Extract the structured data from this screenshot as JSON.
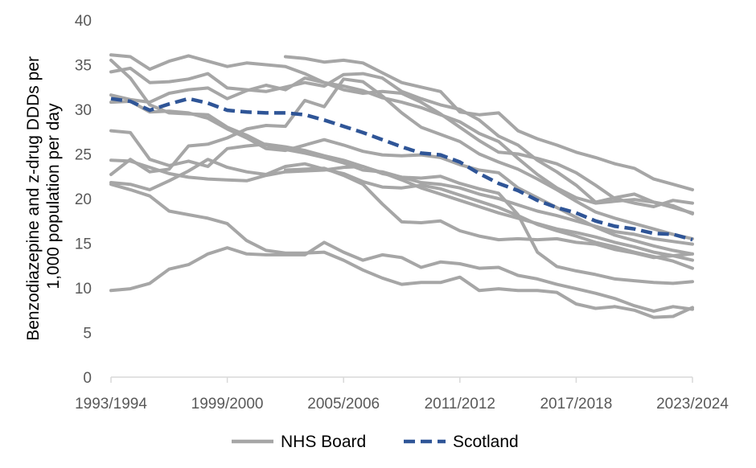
{
  "chart_data": {
    "type": "line",
    "title": "",
    "xlabel": "",
    "ylabel": "Benzodiazepine and z-drug DDDs per 1,000 population per day",
    "ylabel_lines": [
      "Benzodiazepine and z-drug DDDs per",
      "1,000 population per day"
    ],
    "ylim": [
      0,
      40
    ],
    "y_ticks": [
      "0",
      "5",
      "10",
      "15",
      "20",
      "25",
      "30",
      "35",
      "40"
    ],
    "x_tick_labels": [
      "1993/1994",
      "1999/2000",
      "2005/2006",
      "2011/2012",
      "2017/2018",
      "2023/2024"
    ],
    "x": [
      "1993/1994",
      "1994/1995",
      "1995/1996",
      "1996/1997",
      "1997/1998",
      "1998/1999",
      "1999/2000",
      "2000/2001",
      "2001/2002",
      "2002/2003",
      "2003/2004",
      "2004/2005",
      "2005/2006",
      "2006/2007",
      "2007/2008",
      "2008/2009",
      "2009/2010",
      "2010/2011",
      "2011/2012",
      "2012/2013",
      "2013/2014",
      "2014/2015",
      "2015/2016",
      "2016/2017",
      "2017/2018",
      "2018/2019",
      "2019/2020",
      "2020/2021",
      "2021/2022",
      "2022/2023",
      "2023/2024"
    ],
    "grid": false,
    "legend_position": "bottom",
    "colors": {
      "nhs_board": "#a6a6a6",
      "scotland": "#2f5597",
      "axis": "#d9d9d9",
      "tick_text": "#595959"
    },
    "series": [
      {
        "name": "Scotland",
        "style": "dashed",
        "values": [
          31.2,
          30.9,
          29.9,
          30.6,
          31.2,
          30.7,
          29.9,
          29.7,
          29.6,
          29.6,
          29.4,
          28.8,
          28.1,
          27.4,
          26.6,
          25.8,
          25.1,
          24.9,
          24.1,
          22.8,
          21.7,
          20.9,
          19.8,
          19.0,
          18.4,
          17.5,
          16.9,
          16.6,
          16.1,
          16.0,
          15.4
        ]
      },
      {
        "group": "NHS Board",
        "values": [
          null,
          null,
          null,
          null,
          null,
          null,
          null,
          null,
          null,
          35.9,
          35.7,
          35.3,
          35.5,
          35.2,
          34.1,
          33.0,
          32.5,
          32.0,
          29.7,
          29.4,
          29.6,
          27.6,
          26.7,
          26.0,
          25.2,
          24.6,
          23.9,
          23.4,
          22.2,
          21.6,
          21.0
        ]
      },
      {
        "group": "NHS Board",
        "values": [
          36.1,
          35.9,
          34.5,
          35.4,
          36.0,
          35.4,
          34.8,
          35.2,
          35.0,
          34.8,
          34.0,
          33.0,
          32.2,
          31.8,
          32.0,
          31.8,
          30.8,
          29.5,
          28.0,
          26.5,
          25.2,
          25.0,
          24.5,
          23.9,
          22.9,
          21.5,
          20.0,
          19.5,
          19.1,
          19.8,
          19.5
        ]
      },
      {
        "group": "NHS Board",
        "values": [
          35.5,
          33.5,
          30.5,
          29.6,
          29.5,
          29.4,
          28.0,
          27.1,
          26.0,
          25.5,
          25.1,
          24.6,
          24.0,
          23.2,
          23.0,
          22.4,
          21.8,
          21.6,
          21.2,
          20.5,
          20.0,
          19.3,
          18.6,
          18.1,
          17.5,
          16.9,
          16.3,
          16.0,
          15.5,
          15.2,
          14.9
        ]
      },
      {
        "group": "NHS Board",
        "values": [
          34.2,
          34.6,
          33.0,
          33.1,
          33.4,
          34.0,
          32.4,
          32.2,
          32.0,
          32.5,
          33.0,
          32.6,
          33.9,
          34.0,
          33.5,
          32.0,
          31.2,
          30.5,
          30.0,
          28.8,
          27.0,
          26.0,
          24.3,
          23.0,
          21.5,
          19.6,
          20.1,
          20.5,
          19.6,
          19.2,
          18.3
        ]
      },
      {
        "group": "NHS Board",
        "values": [
          31.6,
          31.1,
          30.8,
          31.8,
          32.2,
          32.4,
          31.2,
          32.1,
          32.7,
          32.2,
          33.5,
          33.0,
          32.6,
          32.1,
          31.3,
          30.8,
          30.2,
          29.4,
          28.6,
          27.3,
          26.4,
          24.5,
          22.7,
          21.2,
          20.1,
          19.5,
          19.7,
          19.9,
          19.6,
          19.0,
          18.4
        ]
      },
      {
        "group": "NHS Board",
        "values": [
          22.7,
          24.4,
          23.0,
          23.3,
          25.9,
          26.1,
          26.8,
          27.8,
          28.2,
          28.1,
          31.0,
          30.3,
          33.4,
          33.1,
          31.5,
          29.6,
          28.0,
          27.2,
          26.4,
          25.0,
          24.1,
          23.3,
          22.2,
          21.0,
          19.7,
          18.5,
          17.8,
          17.2,
          16.6,
          16.0,
          15.5
        ]
      },
      {
        "group": "NHS Board",
        "values": [
          30.8,
          30.9,
          29.7,
          29.8,
          29.6,
          29.0,
          27.8,
          26.8,
          25.6,
          25.4,
          26.0,
          26.6,
          26.0,
          25.3,
          24.9,
          24.8,
          24.9,
          24.6,
          23.8,
          23.2,
          22.9,
          21.2,
          20.1,
          19.0,
          17.9,
          16.8,
          15.9,
          15.3,
          14.7,
          14.2,
          13.8
        ]
      },
      {
        "group": "NHS Board",
        "values": [
          27.6,
          27.4,
          24.4,
          23.7,
          24.2,
          23.6,
          25.6,
          25.9,
          26.1,
          25.8,
          25.4,
          24.8,
          24.3,
          23.6,
          22.9,
          22.1,
          21.2,
          20.5,
          19.8,
          19.1,
          18.4,
          17.8,
          17.2,
          16.6,
          16.2,
          15.7,
          15.1,
          14.6,
          14.0,
          13.6,
          13.1
        ]
      },
      {
        "group": "NHS Board",
        "values": [
          24.3,
          24.2,
          23.5,
          22.8,
          22.4,
          22.2,
          22.1,
          22.0,
          22.6,
          23.0,
          23.1,
          23.2,
          23.5,
          23.6,
          22.8,
          22.4,
          22.3,
          22.5,
          21.7,
          21.1,
          20.6,
          18.2,
          14.0,
          12.4,
          11.9,
          11.5,
          11.0,
          10.8,
          10.6,
          10.5,
          10.7
        ]
      },
      {
        "group": "NHS Board",
        "values": [
          21.8,
          21.6,
          21.0,
          22.0,
          23.1,
          24.4,
          23.5,
          23.0,
          22.7,
          23.6,
          23.9,
          23.3,
          22.8,
          21.9,
          21.3,
          21.2,
          21.5,
          21.1,
          20.4,
          19.7,
          19.0,
          18.1,
          17.1,
          16.4,
          15.8,
          15.1,
          14.6,
          14.0,
          13.5,
          13.0,
          12.2
        ]
      },
      {
        "group": "NHS Board",
        "values": [
          21.6,
          21.0,
          20.3,
          18.6,
          18.2,
          17.8,
          17.2,
          15.3,
          14.2,
          13.9,
          13.9,
          14.0,
          13.1,
          12.0,
          11.1,
          10.4,
          10.6,
          10.6,
          11.2,
          9.7,
          9.9,
          9.7,
          9.7,
          9.5,
          8.2,
          7.7,
          7.9,
          7.5,
          6.7,
          6.8,
          7.8
        ]
      },
      {
        "group": "NHS Board",
        "values": [
          9.7,
          9.9,
          10.5,
          12.1,
          12.6,
          13.8,
          14.5,
          13.8,
          13.7,
          13.7,
          13.7,
          15.1,
          14.0,
          13.1,
          13.7,
          13.4,
          12.3,
          12.9,
          12.7,
          12.2,
          12.3,
          11.4,
          11.0,
          10.4,
          9.9,
          9.4,
          8.8,
          8.0,
          7.4,
          7.9,
          7.6
        ]
      },
      {
        "group": "NHS Board",
        "values": [
          null,
          null,
          null,
          null,
          null,
          null,
          null,
          null,
          null,
          23.2,
          23.3,
          23.4,
          22.6,
          21.6,
          19.4,
          17.4,
          17.3,
          17.5,
          16.4,
          15.8,
          15.4,
          15.5,
          15.4,
          15.5,
          15.1,
          14.9,
          14.3,
          13.9,
          13.4,
          13.6,
          13.8
        ]
      }
    ]
  },
  "legend": {
    "items": [
      {
        "label": "NHS Board",
        "style": "solid"
      },
      {
        "label": "Scotland",
        "style": "dashed"
      }
    ]
  }
}
